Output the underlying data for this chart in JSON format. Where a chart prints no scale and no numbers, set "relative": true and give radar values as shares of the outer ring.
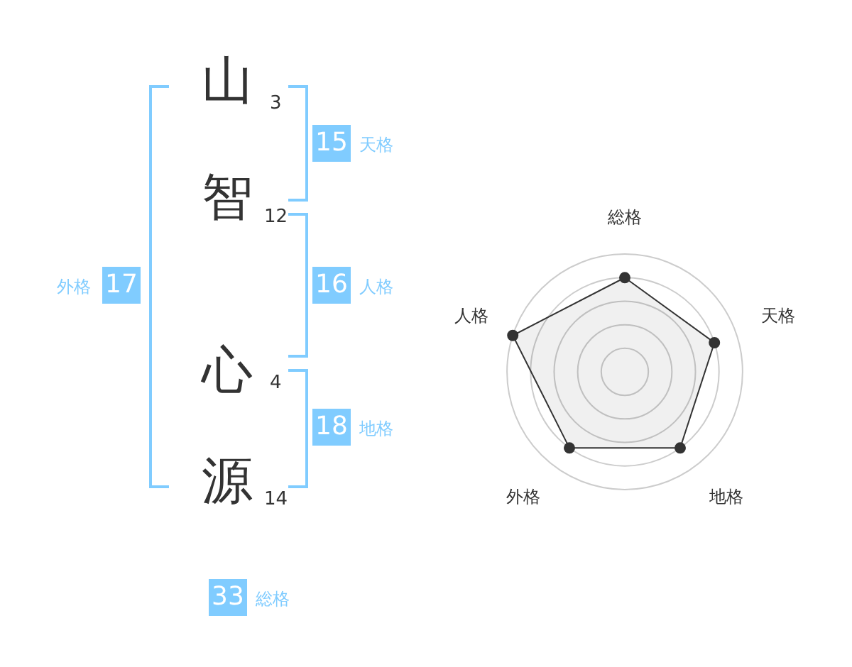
{
  "chart_data": {
    "type": "radar",
    "relative": true,
    "categories": [
      "総格",
      "天格",
      "地格",
      "外格",
      "人格"
    ],
    "series": [
      {
        "color": "#333333",
        "values": [
          0.8,
          0.8,
          0.8,
          0.8,
          1.0
        ]
      }
    ],
    "grid": true,
    "legend": false,
    "marker": "circle",
    "annotations": [
      "山",
      "3",
      "智",
      "12",
      "心",
      "4",
      "源",
      "14",
      "15",
      "天格",
      "16",
      "人格",
      "18",
      "地格",
      "17",
      "外格",
      "33",
      "総格"
    ]
  }
}
